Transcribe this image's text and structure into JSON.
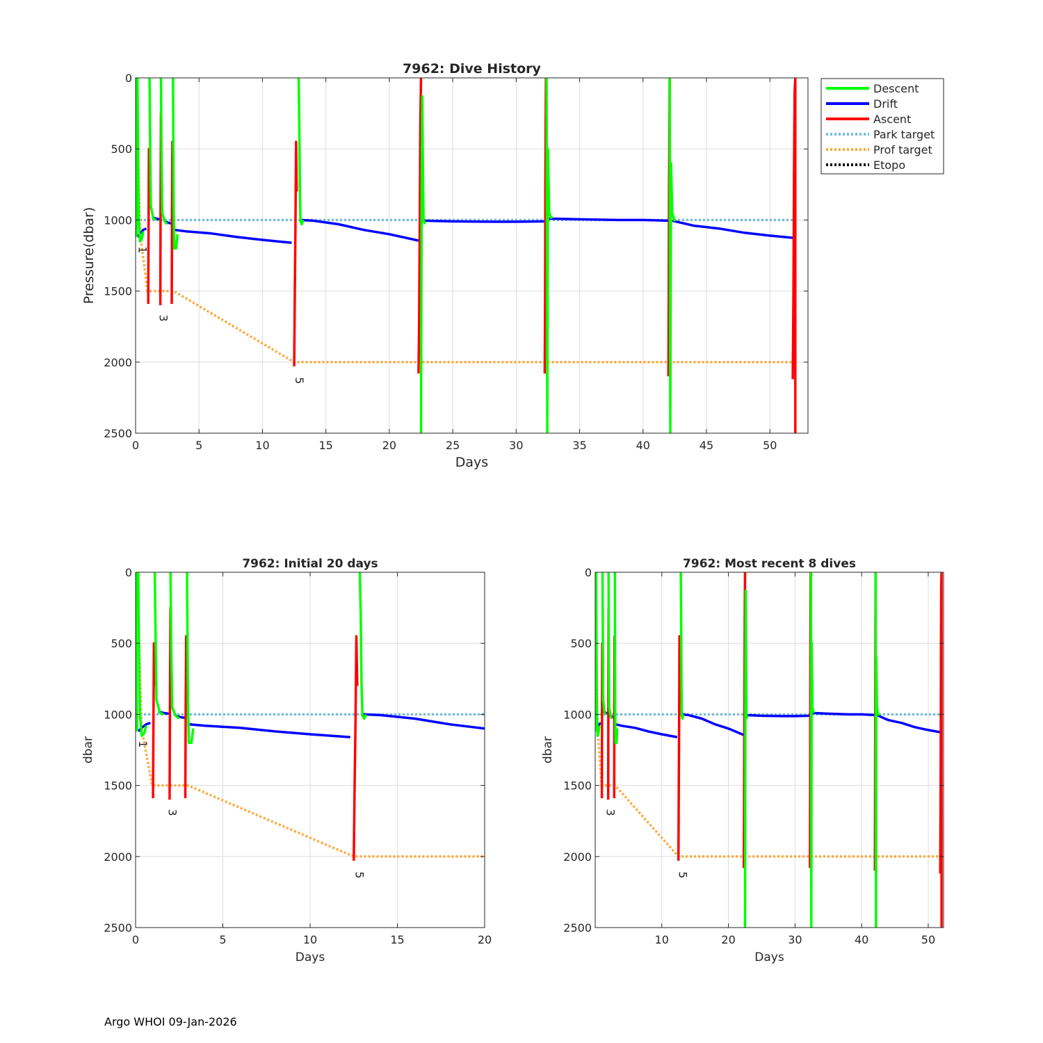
{
  "footer": "Argo WHOI 09-Jan-2026",
  "legend": {
    "items": [
      {
        "label": "Descent",
        "color": "#00ff00",
        "style": "solid"
      },
      {
        "label": "Drift",
        "color": "#0000ff",
        "style": "solid"
      },
      {
        "label": "Ascent",
        "color": "#ff0000",
        "style": "solid"
      },
      {
        "label": "Park target",
        "color": "#77bedb",
        "style": "dotted"
      },
      {
        "label": "Prof target",
        "color": "#ffa93a",
        "style": "dotted"
      },
      {
        "label": "Etopo",
        "color": "#000000",
        "style": "dotted"
      }
    ]
  },
  "chart_data": [
    {
      "id": "main",
      "type": "line",
      "title": "7962: Dive History",
      "xlabel": "Days",
      "ylabel": "Pressure(dbar)",
      "xlim": [
        0,
        53
      ],
      "ylim": [
        0,
        2500
      ],
      "y_reversed": true,
      "xticks": [
        0,
        5,
        10,
        15,
        20,
        25,
        30,
        35,
        40,
        45,
        50
      ],
      "yticks": [
        0,
        500,
        1000,
        1500,
        2000,
        2500
      ],
      "grid": true,
      "profile_labels": [
        {
          "text": "1",
          "x": 0.25,
          "y": 1210
        },
        {
          "text": "3",
          "x": 1.9,
          "y": 1690
        },
        {
          "text": "5",
          "x": 12.6,
          "y": 2130
        }
      ]
    },
    {
      "id": "initial",
      "type": "line",
      "title": "7962: Initial 20 days",
      "xlabel": "Days",
      "ylabel": "dbar",
      "xlim": [
        0,
        20
      ],
      "ylim": [
        0,
        2500
      ],
      "y_reversed": true,
      "xticks": [
        0,
        5,
        10,
        15,
        20
      ],
      "yticks": [
        0,
        500,
        1000,
        1500,
        2000,
        2500
      ],
      "grid": true,
      "profile_labels": [
        {
          "text": "1",
          "x": 0.2,
          "y": 1210
        },
        {
          "text": "3",
          "x": 1.9,
          "y": 1690
        },
        {
          "text": "5",
          "x": 12.6,
          "y": 2130
        }
      ]
    },
    {
      "id": "recent",
      "type": "line",
      "title": "7962: Most recent 8 dives",
      "xlabel": "Days",
      "ylabel": "dbar",
      "xlim": [
        0,
        52.3
      ],
      "ylim": [
        0,
        2500
      ],
      "y_reversed": true,
      "xticks": [
        10,
        20,
        30,
        40,
        50
      ],
      "yticks": [
        0,
        500,
        1000,
        1500,
        2000,
        2500
      ],
      "grid": true,
      "profile_labels": [
        {
          "text": "3",
          "x": 1.7,
          "y": 1690
        },
        {
          "text": "5",
          "x": 12.6,
          "y": 2130
        }
      ]
    }
  ],
  "series": {
    "park_target": [
      [
        0,
        1000
      ],
      [
        52,
        1000
      ]
    ],
    "prof_target": [
      [
        0,
        150
      ],
      [
        0.12,
        150
      ],
      [
        0.18,
        400
      ],
      [
        0.35,
        1100
      ],
      [
        0.95,
        1500
      ],
      [
        3,
        1500
      ],
      [
        12.5,
        2000
      ],
      [
        52,
        2000
      ]
    ],
    "drift": [
      [
        [
          0.15,
          1120
        ],
        [
          0.3,
          1100
        ],
        [
          0.6,
          1070
        ],
        [
          0.85,
          1060
        ]
      ],
      [
        [
          1.3,
          980
        ],
        [
          1.6,
          990
        ],
        [
          1.9,
          995
        ]
      ],
      [
        [
          2.3,
          1010
        ],
        [
          2.6,
          1020
        ],
        [
          2.85,
          1025
        ]
      ],
      [
        [
          3.1,
          1070
        ],
        [
          4,
          1080
        ],
        [
          6,
          1095
        ],
        [
          8,
          1120
        ],
        [
          10,
          1140
        ],
        [
          12.3,
          1160
        ]
      ],
      [
        [
          13.0,
          1000
        ],
        [
          14,
          1005
        ],
        [
          16,
          1030
        ],
        [
          18,
          1070
        ],
        [
          20,
          1100
        ],
        [
          22.3,
          1145
        ]
      ],
      [
        [
          22.6,
          1005
        ],
        [
          25,
          1010
        ],
        [
          28,
          1012
        ],
        [
          30,
          1012
        ],
        [
          32.2,
          1010
        ]
      ],
      [
        [
          32.6,
          990
        ],
        [
          35,
          995
        ],
        [
          38,
          1000
        ],
        [
          40,
          1000
        ],
        [
          42,
          1005
        ]
      ],
      [
        [
          42.3,
          1005
        ],
        [
          44,
          1040
        ],
        [
          46,
          1060
        ],
        [
          48,
          1090
        ],
        [
          50,
          1110
        ],
        [
          51.8,
          1125
        ]
      ]
    ],
    "descent": [
      [
        [
          0.02,
          0
        ],
        [
          0.05,
          700
        ],
        [
          0.08,
          1120
        ]
      ],
      [
        [
          0.15,
          0
        ],
        [
          0.2,
          600
        ],
        [
          0.25,
          1000
        ],
        [
          0.35,
          1150
        ],
        [
          0.5,
          1130
        ],
        [
          0.6,
          1080
        ]
      ],
      [
        [
          1.1,
          0
        ],
        [
          1.15,
          500
        ],
        [
          1.2,
          900
        ],
        [
          1.4,
          990
        ],
        [
          1.6,
          1000
        ]
      ],
      [
        [
          2.0,
          0
        ],
        [
          2.05,
          600
        ],
        [
          2.1,
          950
        ],
        [
          2.3,
          1010
        ],
        [
          2.5,
          1030
        ]
      ],
      [
        [
          2.95,
          0
        ],
        [
          3.0,
          900
        ],
        [
          3.05,
          1200
        ],
        [
          3.2,
          1200
        ],
        [
          3.3,
          1100
        ]
      ],
      [
        [
          12.85,
          0
        ],
        [
          12.9,
          300
        ],
        [
          12.95,
          800
        ],
        [
          13.0,
          1010
        ],
        [
          13.1,
          1030
        ],
        [
          13.2,
          1000
        ]
      ],
      [
        [
          22.5,
          2500
        ],
        [
          22.55,
          800
        ],
        [
          22.6,
          130
        ],
        [
          22.65,
          700
        ],
        [
          22.7,
          1000
        ],
        [
          22.8,
          1030
        ]
      ],
      [
        [
          32.4,
          0
        ],
        [
          32.42,
          1000
        ],
        [
          32.45,
          2500
        ],
        [
          32.5,
          500
        ],
        [
          32.6,
          950
        ],
        [
          32.8,
          990
        ]
      ],
      [
        [
          42.1,
          0
        ],
        [
          42.12,
          1000
        ],
        [
          42.15,
          2500
        ],
        [
          42.2,
          600
        ],
        [
          42.3,
          950
        ],
        [
          42.5,
          1010
        ]
      ]
    ],
    "ascent": [
      [
        [
          1.0,
          1590
        ],
        [
          1.02,
          1100
        ],
        [
          1.05,
          500
        ],
        [
          1.08,
          800
        ]
      ],
      [
        [
          1.95,
          1600
        ],
        [
          1.97,
          1000
        ],
        [
          2.0,
          250
        ],
        [
          2.02,
          600
        ]
      ],
      [
        [
          2.85,
          1590
        ],
        [
          2.87,
          1000
        ],
        [
          2.9,
          450
        ],
        [
          2.92,
          800
        ]
      ],
      [
        [
          12.5,
          2030
        ],
        [
          12.55,
          1500
        ],
        [
          12.6,
          1050
        ],
        [
          12.65,
          450
        ],
        [
          12.7,
          800
        ]
      ],
      [
        [
          22.3,
          2080
        ],
        [
          22.35,
          1700
        ],
        [
          22.4,
          1000
        ],
        [
          22.45,
          300
        ],
        [
          22.5,
          0
        ]
      ],
      [
        [
          32.25,
          2080
        ],
        [
          32.28,
          1500
        ],
        [
          32.3,
          800
        ],
        [
          32.33,
          200
        ],
        [
          32.35,
          0
        ]
      ],
      [
        [
          42.0,
          2100
        ],
        [
          42.03,
          1500
        ],
        [
          42.05,
          800
        ],
        [
          42.08,
          300
        ],
        [
          42.1,
          0
        ]
      ],
      [
        [
          51.8,
          2120
        ],
        [
          51.85,
          1600
        ],
        [
          51.9,
          700
        ],
        [
          51.95,
          100
        ],
        [
          52.0,
          0
        ],
        [
          52.0,
          2500
        ]
      ]
    ]
  }
}
